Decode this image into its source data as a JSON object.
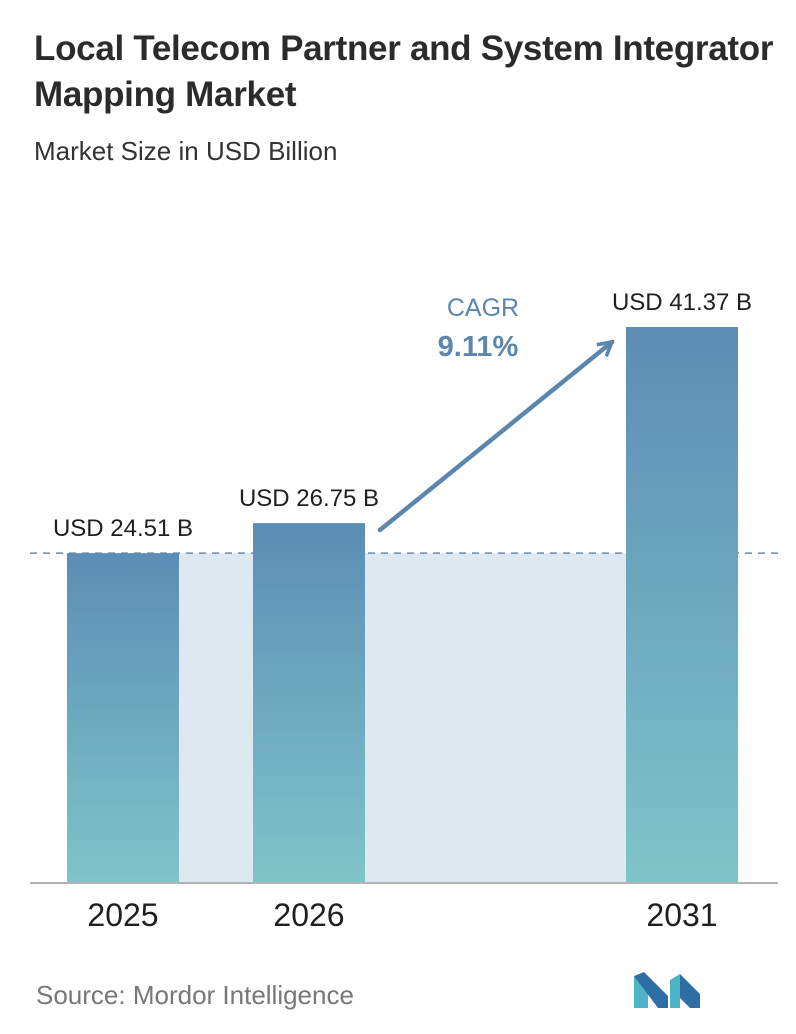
{
  "header": {
    "title": "Local Telecom Partner and System Integrator Mapping Market",
    "subtitle": "Market Size in USD Billion"
  },
  "footer": {
    "source": "Source: Mordor Intelligence",
    "logo_icon": "mordor-intelligence-logo-icon"
  },
  "colors": {
    "bar_top": "#5b8db5",
    "bar_bottom": "#7fc4c9",
    "band": "#dde8f1",
    "arrow": "#5b87ad",
    "cagr_text": "#5b87ad"
  },
  "chart_data": {
    "type": "bar",
    "categories": [
      "2025",
      "2026",
      "2031"
    ],
    "values": [
      24.51,
      26.75,
      41.37
    ],
    "data_labels": [
      "USD 24.51 B",
      "USD 26.75 B",
      "USD 41.37 B"
    ],
    "title": "Local Telecom Partner and System Integrator Mapping Market",
    "subtitle": "Market Size in USD Billion",
    "xlabel": "",
    "ylabel": "",
    "ylim": [
      0,
      41.37
    ],
    "grid": false,
    "reference_line": 24.51,
    "annotation": {
      "label": "CAGR",
      "value": "9.11%"
    }
  }
}
